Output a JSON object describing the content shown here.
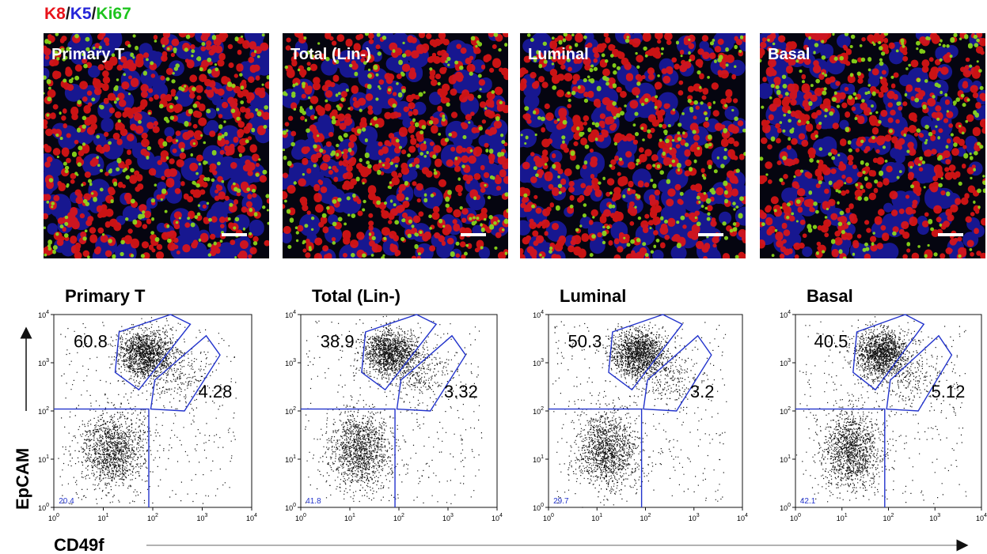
{
  "stain_legend": [
    {
      "text": "K8",
      "color": "#e8131b"
    },
    {
      "text": "/",
      "color": "#1a1a1a"
    },
    {
      "text": "K5",
      "color": "#2626d9"
    },
    {
      "text": "/",
      "color": "#1a1a1a"
    },
    {
      "text": "Ki67",
      "color": "#1fc41f"
    }
  ],
  "images": [
    {
      "label": "Primary T"
    },
    {
      "label": "Total (Lin-)"
    },
    {
      "label": "Luminal"
    },
    {
      "label": "Basal"
    }
  ],
  "flow": {
    "y_axis_label": "EpCAM",
    "x_axis_label": "CD49f",
    "ticks": [
      {
        "base": "10",
        "exponent": "0"
      },
      {
        "base": "10",
        "exponent": "1"
      },
      {
        "base": "10",
        "exponent": "2"
      },
      {
        "base": "10",
        "exponent": "3"
      },
      {
        "base": "10",
        "exponent": "4"
      }
    ],
    "plots": [
      {
        "title": "Primary T",
        "upper_gate": 60.8,
        "lower_gate": 4.28,
        "quadrant_gate": 20.4
      },
      {
        "title": "Total (Lin-)",
        "upper_gate": 38.9,
        "lower_gate": 3.32,
        "quadrant_gate": 41.8
      },
      {
        "title": "Luminal",
        "upper_gate": 50.3,
        "lower_gate": 3.2,
        "quadrant_gate": 29.7
      },
      {
        "title": "Basal",
        "upper_gate": 40.5,
        "lower_gate": 5.12,
        "quadrant_gate": 42.1
      }
    ]
  }
}
